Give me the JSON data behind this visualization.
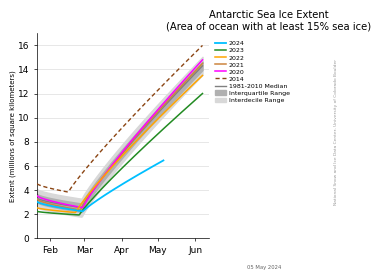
{
  "title_line1": "Antarctic Sea Ice Extent",
  "title_line2": "(Area of ocean with at least 15% sea ice)",
  "ylabel": "Extent (millions of square kilometers)",
  "date_label": "05 May 2024",
  "watermark": "National Snow and Ice Data Center, University of Colorado Boulder",
  "ylim": [
    0,
    17
  ],
  "yticks": [
    0,
    2,
    4,
    6,
    8,
    10,
    12,
    14,
    16
  ],
  "month_ticks": [
    "Feb",
    "Mar",
    "Apr",
    "May",
    "Jun"
  ],
  "colors": {
    "2024": "#00BFFF",
    "2023": "#228B22",
    "2022": "#FFA500",
    "2021": "#CD853F",
    "2020": "#FF00FF",
    "2014": "#8B4513",
    "median": "#808080",
    "iqr": "#B0B0B0",
    "idr": "#D8D8D8"
  },
  "background": "#ffffff"
}
